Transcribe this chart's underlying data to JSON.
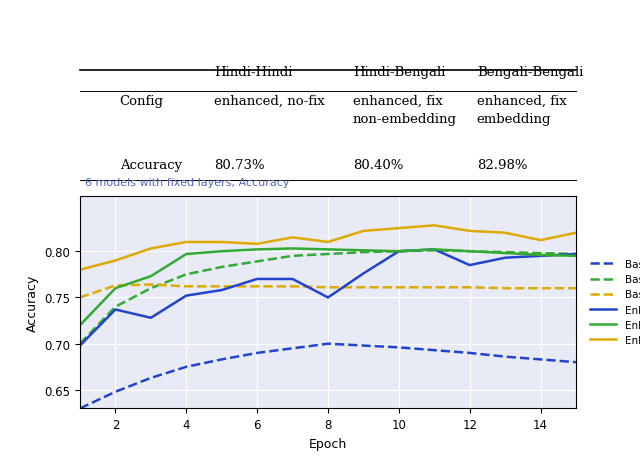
{
  "table": {
    "headers": [
      "",
      "Hindi-Hindi",
      "Hindi-Bengali",
      "Bengali-Bengali"
    ],
    "rows": [
      [
        "Config",
        "enhanced, no-fix",
        "enhanced, fix\nnon-embedding",
        "enhanced, fix\nembedding"
      ],
      [
        "Accuracy",
        "80.73%",
        "80.40%",
        "82.98%"
      ]
    ]
  },
  "chart_subtitle": "6 models with fixed layers, Accuracy",
  "xlabel": "Epoch",
  "ylabel": "Accuracy",
  "xlim": [
    1,
    15
  ],
  "ylim": [
    0.63,
    0.86
  ],
  "yticks": [
    0.65,
    0.7,
    0.75,
    0.8
  ],
  "xticks": [
    2,
    4,
    6,
    8,
    10,
    12,
    14
  ],
  "background_color": "#e8eaf6",
  "series": {
    "Baseline Hindi-Hindi": {
      "x": [
        1,
        2,
        3,
        4,
        5,
        6,
        7,
        8,
        9,
        10,
        11,
        12,
        13,
        14,
        15
      ],
      "y": [
        0.63,
        0.648,
        0.663,
        0.675,
        0.683,
        0.69,
        0.695,
        0.7,
        0.698,
        0.696,
        0.693,
        0.69,
        0.686,
        0.683,
        0.68
      ],
      "color": "#2244cc",
      "linestyle": "--",
      "linewidth": 1.8
    },
    "Baseline Hindi-Bengali": {
      "x": [
        1,
        2,
        3,
        4,
        5,
        6,
        7,
        8,
        9,
        10,
        11,
        12,
        13,
        14,
        15
      ],
      "y": [
        0.7,
        0.74,
        0.76,
        0.775,
        0.783,
        0.789,
        0.795,
        0.797,
        0.799,
        0.8,
        0.801,
        0.8,
        0.799,
        0.798,
        0.797
      ],
      "color": "#33aa33",
      "linestyle": "--",
      "linewidth": 1.8
    },
    "Baseline Bengali-Bengali": {
      "x": [
        1,
        2,
        3,
        4,
        5,
        6,
        7,
        8,
        9,
        10,
        11,
        12,
        13,
        14,
        15
      ],
      "y": [
        0.75,
        0.763,
        0.764,
        0.762,
        0.762,
        0.762,
        0.762,
        0.761,
        0.761,
        0.761,
        0.761,
        0.761,
        0.76,
        0.76,
        0.76
      ],
      "color": "#ddaa00",
      "linestyle": "--",
      "linewidth": 1.8
    },
    "Enhanced Hindi-Hindi": {
      "x": [
        1,
        2,
        3,
        4,
        5,
        6,
        7,
        8,
        9,
        10,
        11,
        12,
        13,
        14,
        15
      ],
      "y": [
        0.698,
        0.737,
        0.728,
        0.752,
        0.758,
        0.77,
        0.77,
        0.75,
        0.776,
        0.8,
        0.802,
        0.785,
        0.793,
        0.795,
        0.797
      ],
      "color": "#2244cc",
      "linestyle": "-",
      "linewidth": 1.8
    },
    "Enhanced Hindi-Bengali": {
      "x": [
        1,
        2,
        3,
        4,
        5,
        6,
        7,
        8,
        9,
        10,
        11,
        12,
        13,
        14,
        15
      ],
      "y": [
        0.72,
        0.76,
        0.773,
        0.797,
        0.8,
        0.802,
        0.803,
        0.802,
        0.801,
        0.8,
        0.802,
        0.8,
        0.798,
        0.796,
        0.795
      ],
      "color": "#33aa33",
      "linestyle": "-",
      "linewidth": 1.8
    },
    "Enhanced Bengali-Bengali": {
      "x": [
        1,
        2,
        3,
        4,
        5,
        6,
        7,
        8,
        9,
        10,
        11,
        12,
        13,
        14,
        15
      ],
      "y": [
        0.78,
        0.79,
        0.803,
        0.81,
        0.81,
        0.808,
        0.815,
        0.81,
        0.822,
        0.825,
        0.828,
        0.822,
        0.82,
        0.812,
        0.82
      ],
      "color": "#ddaa00",
      "linestyle": "-",
      "linewidth": 1.8
    }
  }
}
